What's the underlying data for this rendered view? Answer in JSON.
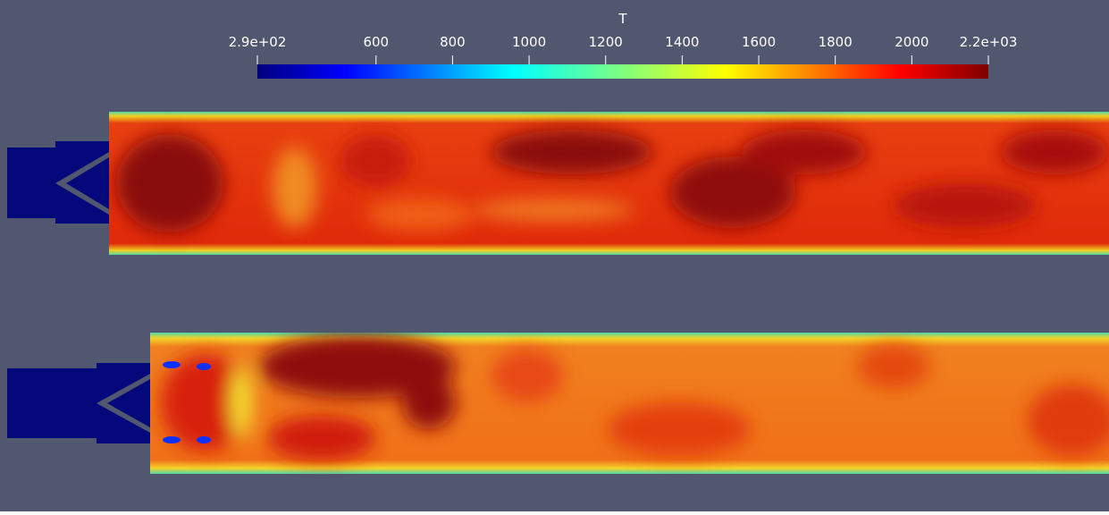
{
  "colorbar": {
    "title": "T",
    "range": [
      290,
      2200
    ],
    "ticks": [
      {
        "value": 290,
        "label": "2.9e+02"
      },
      600,
      800,
      1000,
      1200,
      1400,
      1600,
      1800,
      2000,
      {
        "value": 2200,
        "label": "2.2e+03"
      }
    ]
  }
}
